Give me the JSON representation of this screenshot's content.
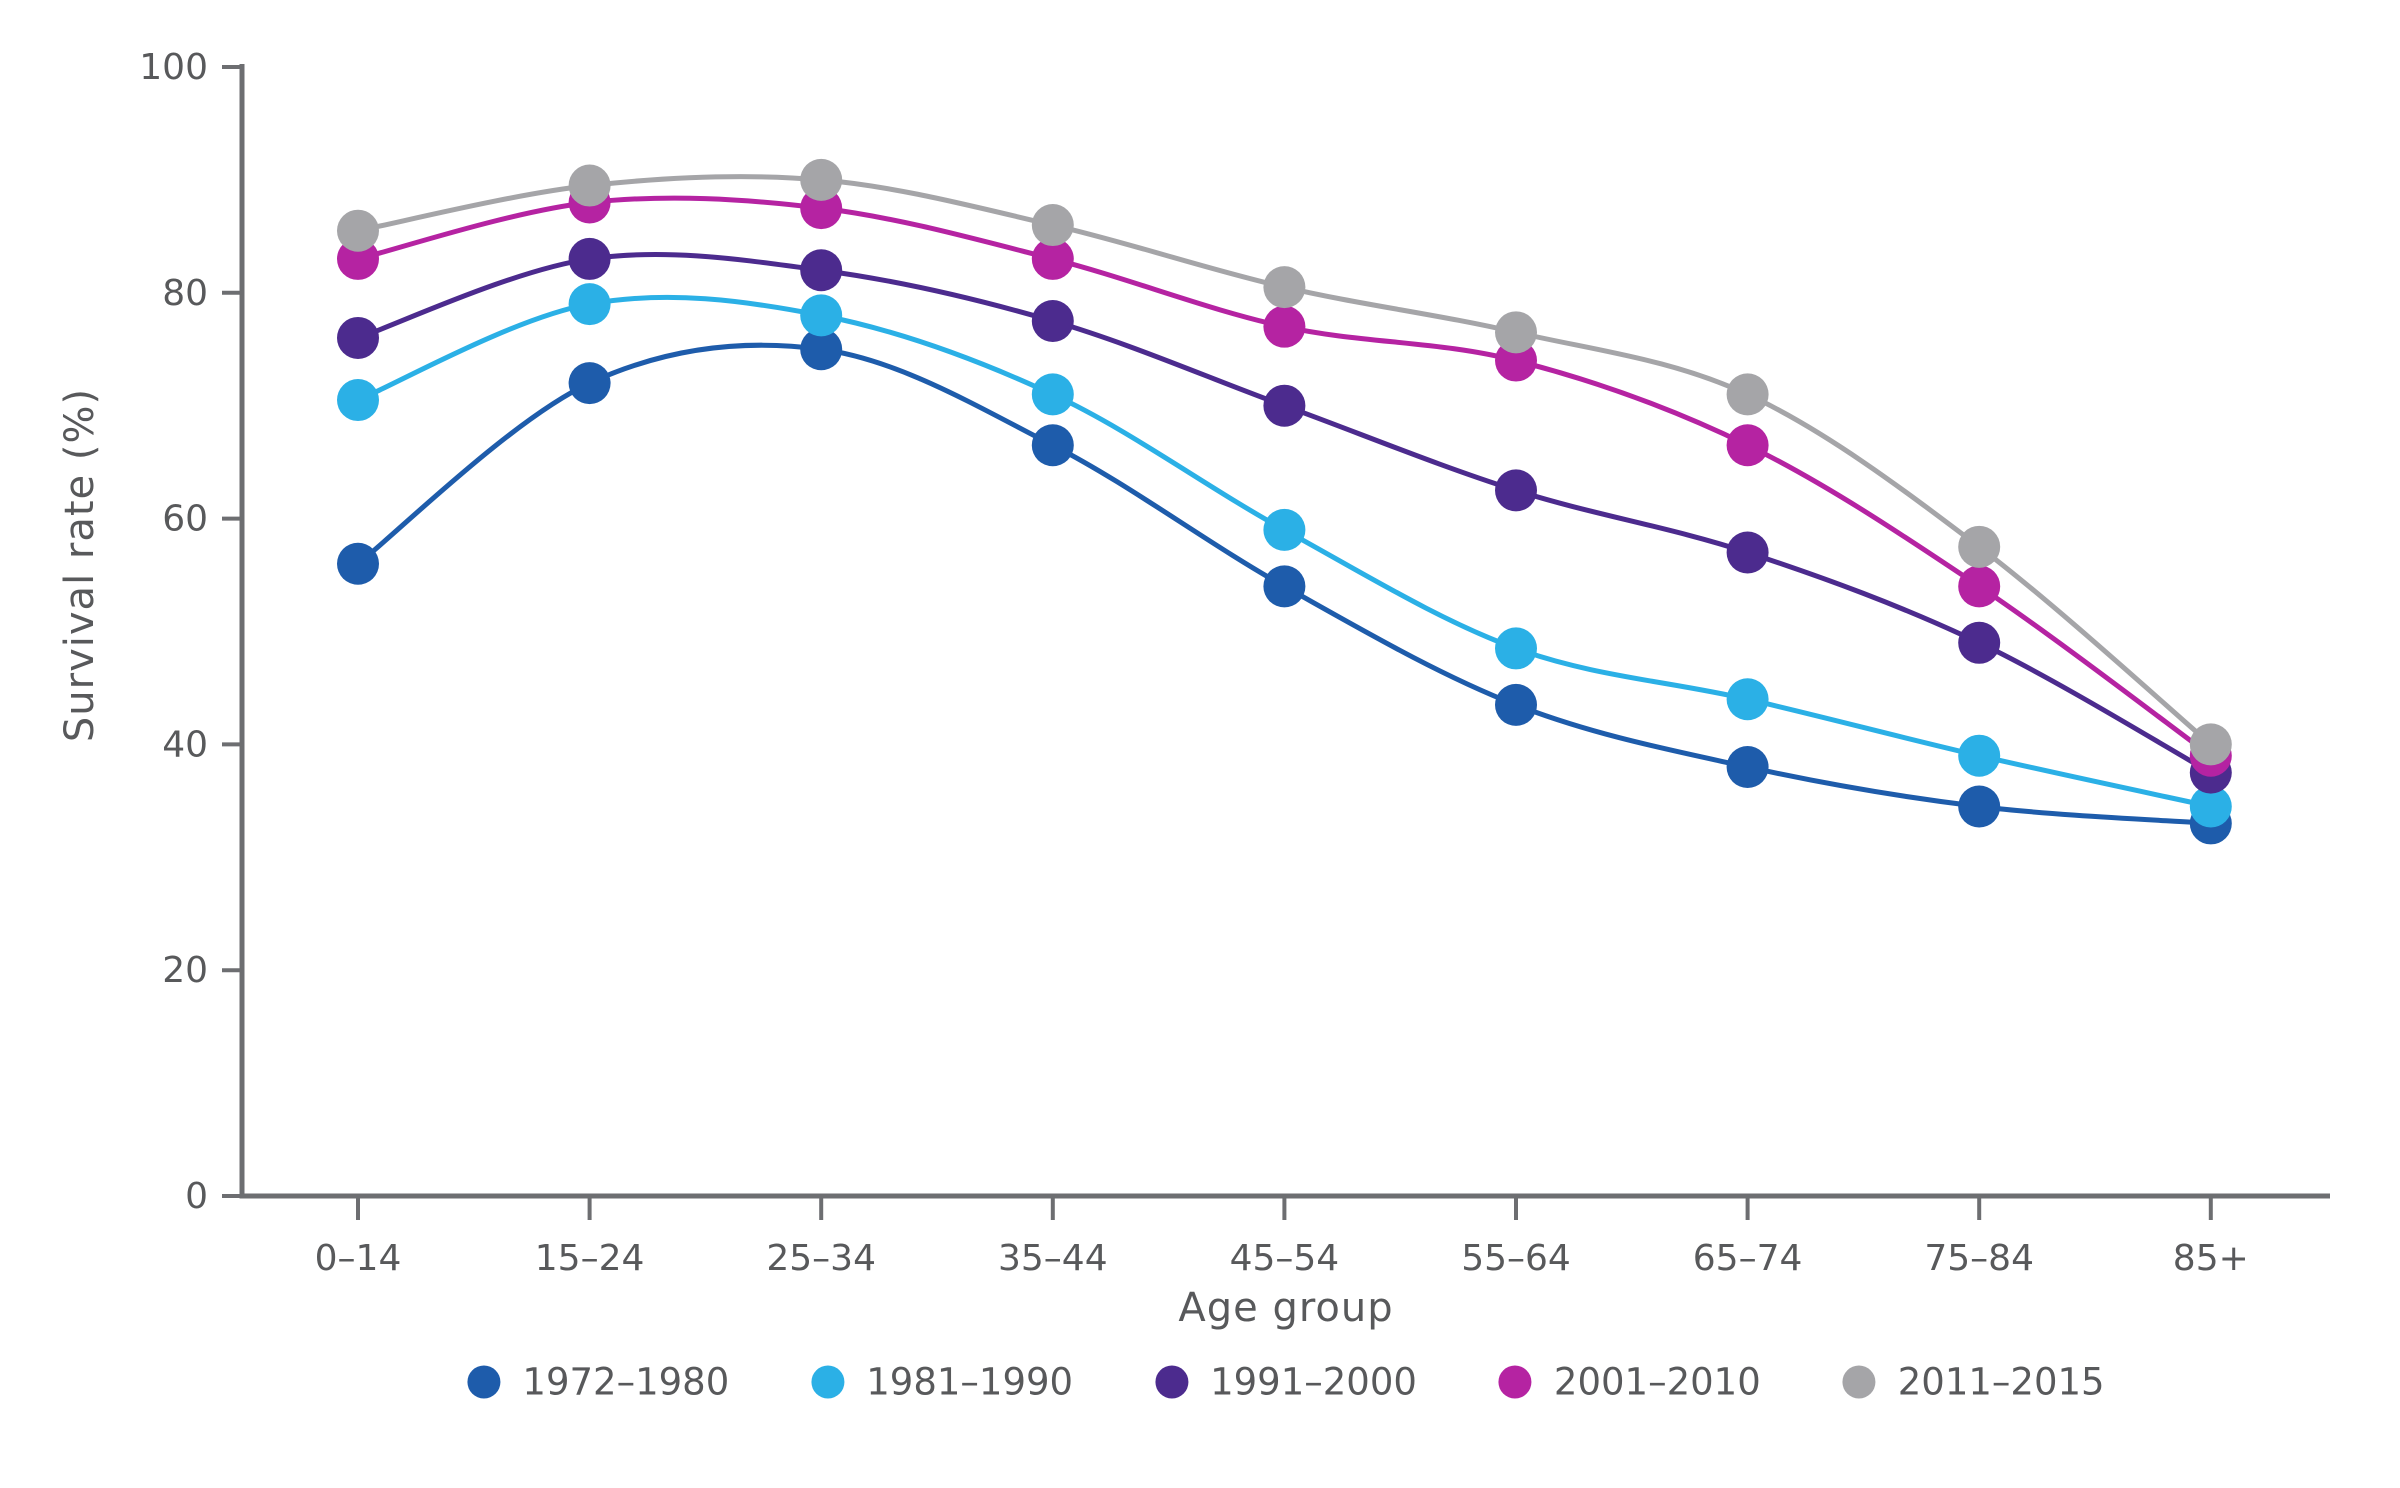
{
  "background_color": "#ffffff",
  "axis_color": "#6d6e71",
  "text_color": "#58595b",
  "chart_data": {
    "type": "line",
    "title": "",
    "xlabel": "Age group",
    "ylabel": "Survival rate (%)",
    "ylim": [
      0,
      100
    ],
    "yticks": [
      0,
      20,
      40,
      60,
      80,
      100
    ],
    "grid": false,
    "legend_position": "bottom",
    "categories": [
      "0–14",
      "15–24",
      "25–34",
      "35–44",
      "45–54",
      "55–64",
      "65–74",
      "75–84",
      "85+"
    ],
    "series": [
      {
        "name": "1972–1980",
        "color": "#1e5cab",
        "values": [
          56,
          72,
          75,
          66.5,
          54,
          43.5,
          38,
          34.5,
          33
        ]
      },
      {
        "name": "1981–1990",
        "color": "#2bb0e6",
        "values": [
          70.5,
          79,
          78,
          71,
          59,
          48.5,
          44,
          39,
          34.5
        ]
      },
      {
        "name": "1991–2000",
        "color": "#4c2b8e",
        "values": [
          76,
          83,
          82,
          77.5,
          70,
          62.5,
          57,
          49,
          37.5
        ]
      },
      {
        "name": "2001–2010",
        "color": "#b523a2",
        "values": [
          83,
          88,
          87.5,
          83,
          77,
          74,
          66.5,
          54,
          39
        ]
      },
      {
        "name": "2011–2015",
        "color": "#a5a5a8",
        "values": [
          85.5,
          89.5,
          90,
          86,
          80.5,
          76.5,
          71,
          57.5,
          40
        ]
      }
    ]
  }
}
